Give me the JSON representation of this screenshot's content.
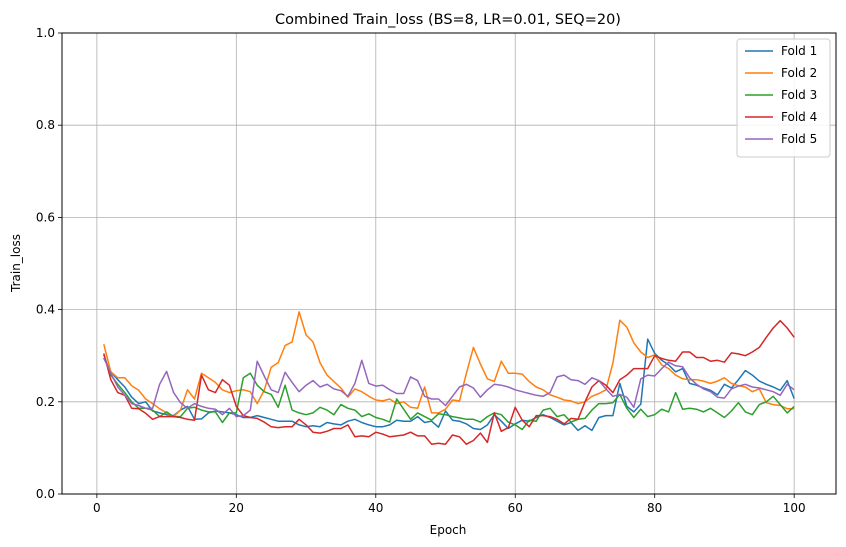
{
  "chart_data": {
    "type": "line",
    "title": "Combined Train_loss (BS=8, LR=0.01, SEQ=20)",
    "xlabel": "Epoch",
    "ylabel": "Train_loss",
    "xlim": [
      -5,
      106
    ],
    "ylim": [
      0.0,
      1.0
    ],
    "xticks": [
      0,
      20,
      40,
      60,
      80,
      100
    ],
    "yticks": [
      0.0,
      0.2,
      0.4,
      0.6,
      0.8,
      1.0
    ],
    "xtick_labels": [
      "0",
      "20",
      "40",
      "60",
      "80",
      "100"
    ],
    "ytick_labels": [
      "0.0",
      "0.2",
      "0.4",
      "0.6",
      "0.8",
      "1.0"
    ],
    "grid": true,
    "legend_position": "top-right",
    "x": [
      1,
      2,
      3,
      4,
      5,
      6,
      7,
      8,
      9,
      10,
      11,
      12,
      13,
      14,
      15,
      16,
      17,
      18,
      19,
      20,
      21,
      22,
      23,
      24,
      25,
      26,
      27,
      28,
      29,
      30,
      31,
      32,
      33,
      34,
      35,
      36,
      37,
      38,
      39,
      40,
      41,
      42,
      43,
      44,
      45,
      46,
      47,
      48,
      49,
      50,
      51,
      52,
      53,
      54,
      55,
      56,
      57,
      58,
      59,
      60,
      61,
      62,
      63,
      64,
      65,
      66,
      67,
      68,
      69,
      70,
      71,
      72,
      73,
      74,
      75,
      76,
      77,
      78,
      79,
      80,
      81,
      82,
      83,
      84,
      85,
      86,
      87,
      88,
      89,
      90,
      91,
      92,
      93,
      94,
      95,
      96,
      97,
      98,
      99,
      100
    ],
    "series": [
      {
        "name": "Fold 1",
        "color": "#1f77b4",
        "values": [
          0.295,
          0.265,
          0.248,
          0.232,
          0.21,
          0.196,
          0.2,
          0.18,
          0.176,
          0.172,
          0.17,
          0.182,
          0.19,
          0.162,
          0.163,
          0.176,
          0.18,
          0.178,
          0.176,
          0.172,
          0.166,
          0.166,
          0.17,
          0.166,
          0.162,
          0.158,
          0.158,
          0.158,
          0.15,
          0.146,
          0.148,
          0.146,
          0.155,
          0.152,
          0.15,
          0.158,
          0.162,
          0.155,
          0.15,
          0.146,
          0.146,
          0.15,
          0.16,
          0.158,
          0.158,
          0.168,
          0.155,
          0.158,
          0.145,
          0.18,
          0.16,
          0.158,
          0.152,
          0.142,
          0.14,
          0.15,
          0.172,
          0.158,
          0.142,
          0.152,
          0.16,
          0.158,
          0.166,
          0.172,
          0.166,
          0.158,
          0.15,
          0.155,
          0.138,
          0.148,
          0.138,
          0.166,
          0.17,
          0.17,
          0.24,
          0.19,
          0.178,
          0.195,
          0.336,
          0.305,
          0.29,
          0.28,
          0.265,
          0.272,
          0.24,
          0.236,
          0.23,
          0.225,
          0.215,
          0.238,
          0.23,
          0.248,
          0.268,
          0.258,
          0.245,
          0.238,
          0.232,
          0.225,
          0.246,
          0.207
        ]
      },
      {
        "name": "Fold 2",
        "color": "#ff7f0e",
        "values": [
          0.325,
          0.265,
          0.252,
          0.252,
          0.235,
          0.225,
          0.206,
          0.196,
          0.185,
          0.176,
          0.168,
          0.182,
          0.226,
          0.206,
          0.262,
          0.252,
          0.242,
          0.226,
          0.22,
          0.224,
          0.226,
          0.222,
          0.196,
          0.225,
          0.275,
          0.285,
          0.322,
          0.33,
          0.395,
          0.345,
          0.33,
          0.285,
          0.258,
          0.244,
          0.23,
          0.21,
          0.228,
          0.222,
          0.212,
          0.204,
          0.202,
          0.206,
          0.196,
          0.2,
          0.188,
          0.186,
          0.232,
          0.176,
          0.176,
          0.184,
          0.204,
          0.202,
          0.262,
          0.318,
          0.282,
          0.25,
          0.244,
          0.288,
          0.262,
          0.262,
          0.26,
          0.244,
          0.232,
          0.226,
          0.215,
          0.21,
          0.204,
          0.202,
          0.196,
          0.2,
          0.212,
          0.218,
          0.226,
          0.284,
          0.377,
          0.362,
          0.328,
          0.308,
          0.296,
          0.302,
          0.28,
          0.272,
          0.258,
          0.25,
          0.248,
          0.248,
          0.245,
          0.24,
          0.245,
          0.252,
          0.24,
          0.235,
          0.232,
          0.222,
          0.228,
          0.198,
          0.194,
          0.192,
          0.185,
          0.185
        ]
      },
      {
        "name": "Fold 3",
        "color": "#2ca02c",
        "values": [
          0.302,
          0.258,
          0.238,
          0.22,
          0.2,
          0.186,
          0.186,
          0.182,
          0.168,
          0.178,
          0.168,
          0.168,
          0.186,
          0.188,
          0.182,
          0.178,
          0.178,
          0.155,
          0.176,
          0.176,
          0.252,
          0.262,
          0.236,
          0.222,
          0.216,
          0.188,
          0.236,
          0.182,
          0.176,
          0.172,
          0.176,
          0.188,
          0.182,
          0.172,
          0.194,
          0.186,
          0.182,
          0.168,
          0.174,
          0.166,
          0.162,
          0.156,
          0.206,
          0.184,
          0.162,
          0.176,
          0.168,
          0.16,
          0.174,
          0.172,
          0.168,
          0.165,
          0.162,
          0.162,
          0.156,
          0.168,
          0.176,
          0.172,
          0.156,
          0.15,
          0.14,
          0.16,
          0.158,
          0.182,
          0.186,
          0.168,
          0.172,
          0.156,
          0.162,
          0.164,
          0.182,
          0.196,
          0.196,
          0.198,
          0.216,
          0.186,
          0.166,
          0.184,
          0.168,
          0.172,
          0.184,
          0.178,
          0.22,
          0.184,
          0.186,
          0.184,
          0.178,
          0.186,
          0.176,
          0.166,
          0.18,
          0.198,
          0.178,
          0.172,
          0.194,
          0.2,
          0.212,
          0.194,
          0.176,
          0.19
        ]
      },
      {
        "name": "Fold 4",
        "color": "#d62728",
        "values": [
          0.305,
          0.248,
          0.22,
          0.214,
          0.186,
          0.185,
          0.175,
          0.162,
          0.168,
          0.168,
          0.168,
          0.166,
          0.162,
          0.16,
          0.258,
          0.226,
          0.22,
          0.248,
          0.236,
          0.19,
          0.17,
          0.166,
          0.164,
          0.156,
          0.146,
          0.144,
          0.146,
          0.146,
          0.162,
          0.15,
          0.134,
          0.132,
          0.136,
          0.142,
          0.142,
          0.15,
          0.124,
          0.126,
          0.124,
          0.134,
          0.13,
          0.124,
          0.126,
          0.128,
          0.134,
          0.126,
          0.126,
          0.108,
          0.11,
          0.108,
          0.128,
          0.124,
          0.108,
          0.116,
          0.132,
          0.112,
          0.176,
          0.136,
          0.144,
          0.188,
          0.16,
          0.146,
          0.17,
          0.17,
          0.168,
          0.162,
          0.152,
          0.164,
          0.162,
          0.2,
          0.232,
          0.246,
          0.236,
          0.22,
          0.248,
          0.258,
          0.272,
          0.272,
          0.272,
          0.3,
          0.294,
          0.29,
          0.288,
          0.308,
          0.308,
          0.296,
          0.296,
          0.288,
          0.29,
          0.286,
          0.306,
          0.304,
          0.3,
          0.308,
          0.318,
          0.34,
          0.36,
          0.376,
          0.36,
          0.34
        ]
      },
      {
        "name": "Fold 5",
        "color": "#9467bd",
        "values": [
          0.295,
          0.262,
          0.232,
          0.214,
          0.196,
          0.192,
          0.186,
          0.186,
          0.238,
          0.266,
          0.22,
          0.198,
          0.186,
          0.196,
          0.19,
          0.186,
          0.184,
          0.172,
          0.186,
          0.168,
          0.17,
          0.182,
          0.288,
          0.256,
          0.226,
          0.22,
          0.264,
          0.242,
          0.222,
          0.236,
          0.246,
          0.232,
          0.238,
          0.228,
          0.224,
          0.212,
          0.24,
          0.29,
          0.24,
          0.234,
          0.236,
          0.226,
          0.218,
          0.218,
          0.254,
          0.246,
          0.212,
          0.206,
          0.206,
          0.192,
          0.212,
          0.232,
          0.238,
          0.23,
          0.21,
          0.226,
          0.238,
          0.236,
          0.232,
          0.226,
          0.222,
          0.218,
          0.214,
          0.212,
          0.22,
          0.254,
          0.258,
          0.248,
          0.246,
          0.238,
          0.252,
          0.246,
          0.228,
          0.212,
          0.216,
          0.21,
          0.188,
          0.25,
          0.258,
          0.256,
          0.272,
          0.286,
          0.278,
          0.276,
          0.252,
          0.238,
          0.228,
          0.222,
          0.21,
          0.208,
          0.228,
          0.234,
          0.238,
          0.232,
          0.23,
          0.226,
          0.222,
          0.214,
          0.238,
          0.226
        ]
      }
    ]
  }
}
